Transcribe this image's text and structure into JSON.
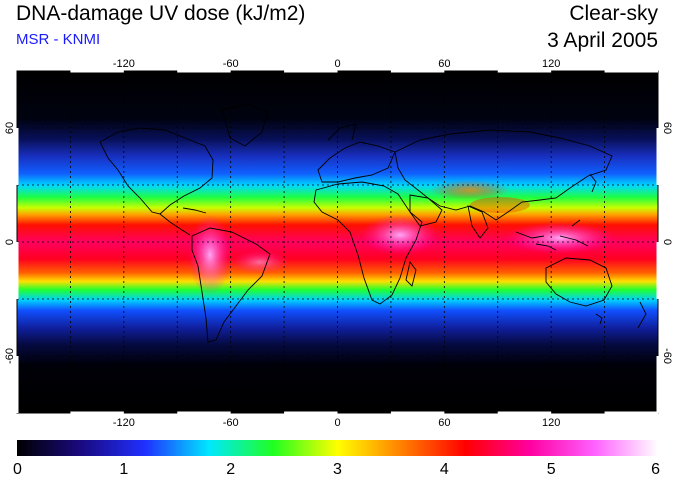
{
  "header": {
    "title": "DNA-damage UV dose (kJ/m2)",
    "subtitle": "MSR - KNMI",
    "mode": "Clear-sky",
    "date": "3 April 2005"
  },
  "map": {
    "lon_range": [
      -180,
      180
    ],
    "lat_range": [
      -90,
      90
    ],
    "lon_ticks": [
      {
        "value": -120,
        "label": "-120"
      },
      {
        "value": -60,
        "label": "-60"
      },
      {
        "value": 0,
        "label": "0"
      },
      {
        "value": 60,
        "label": "60"
      },
      {
        "value": 120,
        "label": "120"
      }
    ],
    "lat_ticks": [
      {
        "value": 60,
        "label": "60"
      },
      {
        "value": 0,
        "label": "0"
      },
      {
        "value": -60,
        "label": "-60"
      }
    ],
    "dotted_lines_lat": [
      -30,
      30
    ],
    "dotted_lines_lon": [
      -150,
      -90,
      -30,
      30,
      90,
      150
    ]
  },
  "colorbar": {
    "min": 0,
    "max": 6,
    "ticks": [
      {
        "value": 0,
        "label": "0"
      },
      {
        "value": 1,
        "label": "1"
      },
      {
        "value": 2,
        "label": "2"
      },
      {
        "value": 3,
        "label": "3"
      },
      {
        "value": 4,
        "label": "4"
      },
      {
        "value": 5,
        "label": "5"
      },
      {
        "value": 6,
        "label": "6"
      }
    ],
    "colors": [
      "#000000",
      "#1a0a80",
      "#2030ff",
      "#00e8ff",
      "#20ff20",
      "#ffff00",
      "#ff8000",
      "#ff0000",
      "#ff00a0",
      "#ff60ff",
      "#ffffff"
    ]
  }
}
